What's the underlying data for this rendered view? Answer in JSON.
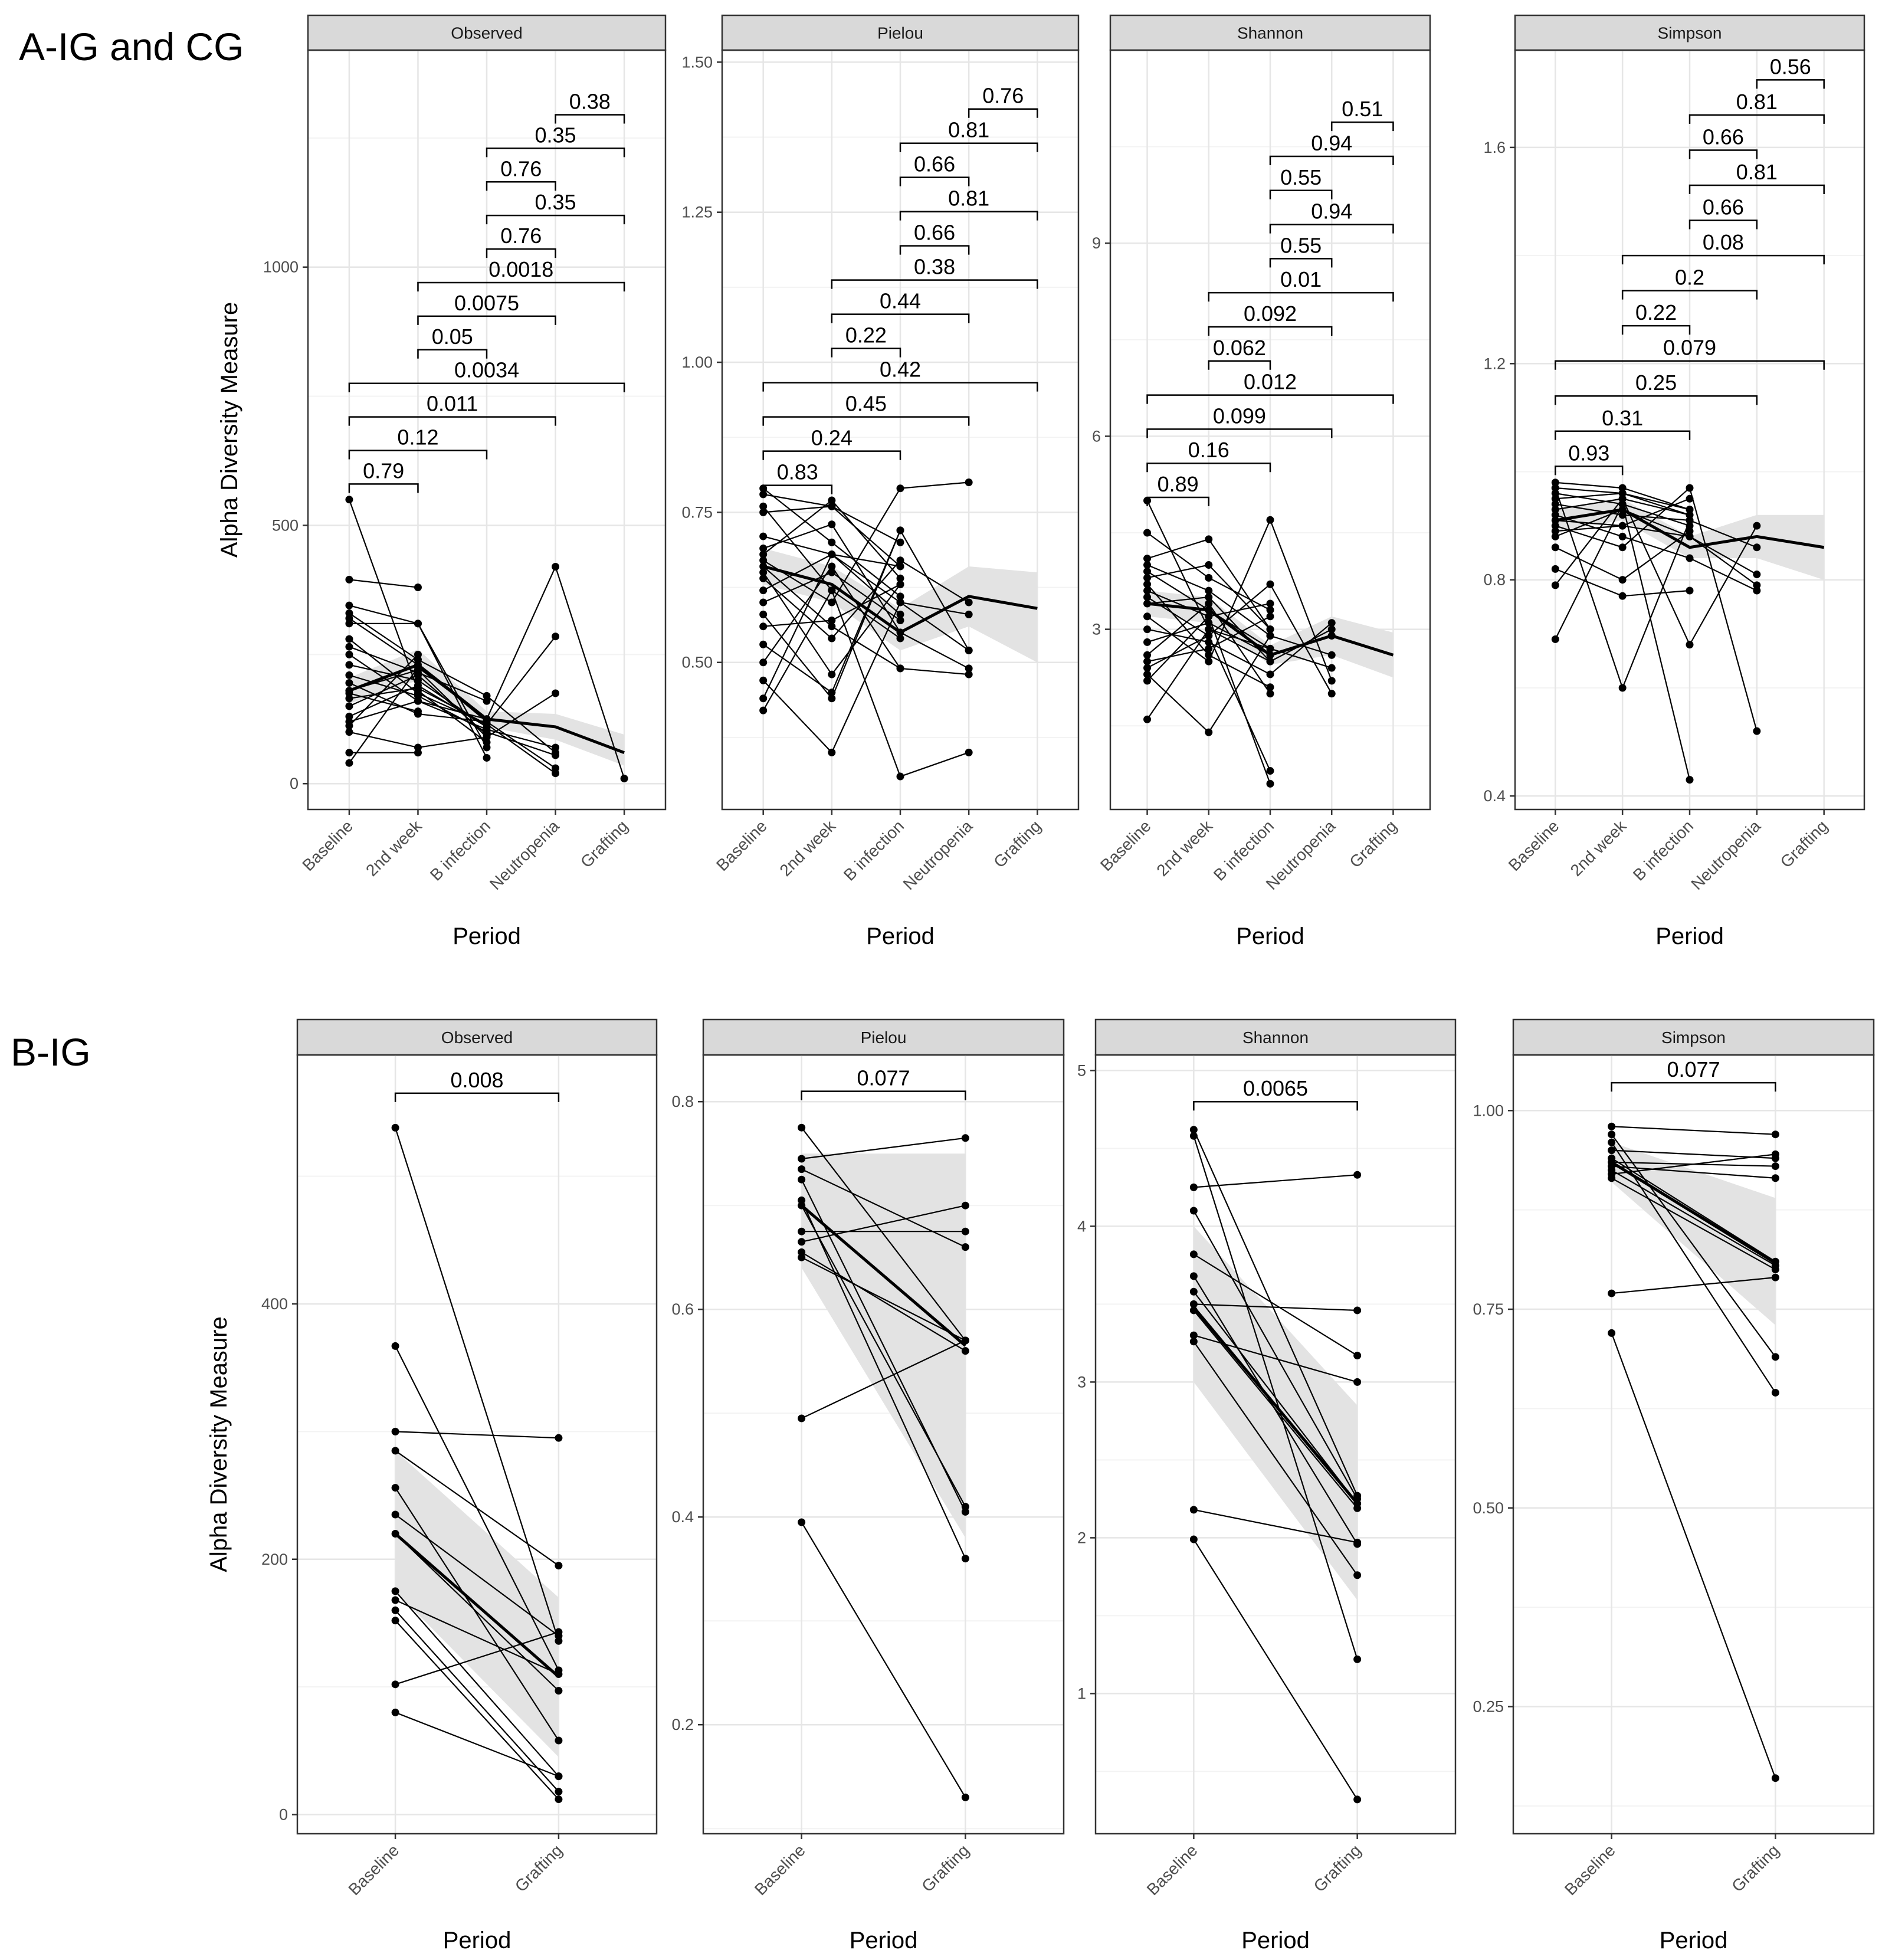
{
  "figure": {
    "panel_a_label": "A-IG and CG",
    "panel_b_label": "B-IG"
  },
  "colors": {
    "strip_fill": "#d9d9d9",
    "frame": "#333333",
    "grid_major": "#e6e6e6",
    "grid_minor": "#f3f3f3",
    "line": "#000000",
    "ribbon": "#e3e3e3",
    "text": "#000000",
    "tick_text": "#4d4d4d"
  },
  "chart_data": [
    {
      "type": "line",
      "group": "A-IG and CG",
      "facet": "Observed",
      "xlabel": "Period",
      "ylabel": "Alpha Diversity Measure",
      "categories": [
        "Baseline",
        "2nd week",
        "B infection",
        "Neutropenia",
        "Grafting"
      ],
      "ylim": [
        -50,
        1420
      ],
      "yticks": [
        0,
        500,
        1000
      ],
      "comparisons": [
        {
          "from": 0,
          "to": 1,
          "p": "0.79",
          "y": 580
        },
        {
          "from": 0,
          "to": 2,
          "p": "0.12",
          "y": 645
        },
        {
          "from": 0,
          "to": 3,
          "p": "0.011",
          "y": 710
        },
        {
          "from": 0,
          "to": 4,
          "p": "0.0034",
          "y": 775
        },
        {
          "from": 1,
          "to": 2,
          "p": "0.05",
          "y": 840
        },
        {
          "from": 1,
          "to": 3,
          "p": "0.0075",
          "y": 905
        },
        {
          "from": 1,
          "to": 4,
          "p": "0.0018",
          "y": 970
        },
        {
          "from": 2,
          "to": 3,
          "p": "0.76",
          "y": 1035
        },
        {
          "from": 2,
          "to": 4,
          "p": "0.35",
          "y": 1100
        },
        {
          "from": 2,
          "to": 3,
          "p": "0.76",
          "y": 1165
        },
        {
          "from": 2,
          "to": 4,
          "p": "0.35",
          "y": 1230
        },
        {
          "from": 3,
          "to": 4,
          "p": "0.38",
          "y": 1295
        }
      ],
      "series": [
        [
          550,
          180,
          80
        ],
        [
          395,
          380
        ],
        [
          345,
          310,
          70
        ],
        [
          330,
          240,
          170,
          60
        ],
        [
          320,
          230,
          120,
          30
        ],
        [
          310,
          310,
          50
        ],
        [
          280,
          175,
          115,
          285
        ],
        [
          265,
          215,
          160
        ],
        [
          250,
          160,
          125,
          420,
          10
        ],
        [
          230,
          200,
          110
        ],
        [
          210,
          170,
          100,
          55
        ],
        [
          195,
          135,
          120
        ],
        [
          180,
          220,
          90,
          175
        ],
        [
          165,
          185,
          115,
          20
        ],
        [
          150,
          210,
          95
        ],
        [
          130,
          190,
          110
        ],
        [
          120,
          160,
          105,
          70
        ],
        [
          112,
          250
        ],
        [
          100,
          70,
          90
        ],
        [
          40,
          225,
          125
        ],
        [
          175,
          140
        ],
        [
          60,
          60
        ]
      ],
      "mean": [
        180,
        230,
        125,
        110,
        60
      ],
      "band_lower": [
        155,
        200,
        110,
        85,
        35
      ],
      "band_upper": [
        205,
        260,
        140,
        135,
        95
      ]
    },
    {
      "type": "line",
      "group": "A-IG and CG",
      "facet": "Pielou",
      "xlabel": "Period",
      "ylabel": "",
      "categories": [
        "Baseline",
        "2nd week",
        "B infection",
        "Neutropenia",
        "Grafting"
      ],
      "ylim": [
        0.255,
        1.52
      ],
      "yticks": [
        0.5,
        0.75,
        1.0,
        1.25,
        1.5
      ],
      "ytick_labels": [
        "0.50",
        "0.75",
        "1.00",
        "1.25",
        "1.50"
      ],
      "comparisons": [
        {
          "from": 0,
          "to": 1,
          "p": "0.83",
          "y": 0.795
        },
        {
          "from": 0,
          "to": 2,
          "p": "0.24",
          "y": 0.852
        },
        {
          "from": 0,
          "to": 3,
          "p": "0.45",
          "y": 0.909
        },
        {
          "from": 0,
          "to": 4,
          "p": "0.42",
          "y": 0.966
        },
        {
          "from": 1,
          "to": 2,
          "p": "0.22",
          "y": 1.023
        },
        {
          "from": 1,
          "to": 3,
          "p": "0.44",
          "y": 1.08
        },
        {
          "from": 1,
          "to": 4,
          "p": "0.38",
          "y": 1.137
        },
        {
          "from": 2,
          "to": 3,
          "p": "0.66",
          "y": 1.194
        },
        {
          "from": 2,
          "to": 4,
          "p": "0.81",
          "y": 1.251
        },
        {
          "from": 2,
          "to": 3,
          "p": "0.66",
          "y": 1.308
        },
        {
          "from": 2,
          "to": 4,
          "p": "0.81",
          "y": 1.365
        },
        {
          "from": 3,
          "to": 4,
          "p": "0.76",
          "y": 1.422
        }
      ],
      "series": [
        [
          0.79,
          0.7,
          0.61
        ],
        [
          0.78,
          0.76,
          0.66
        ],
        [
          0.76,
          0.62,
          0.54
        ],
        [
          0.75,
          0.76,
          0.7
        ],
        [
          0.71,
          0.68,
          0.58
        ],
        [
          0.69,
          0.73,
          0.55,
          0.49
        ],
        [
          0.67,
          0.6,
          0.79,
          0.8
        ],
        [
          0.66,
          0.56,
          0.49,
          0.48
        ],
        [
          0.65,
          0.48,
          0.63
        ],
        [
          0.64,
          0.54,
          0.67,
          0.6
        ],
        [
          0.62,
          0.68,
          0.6,
          0.52
        ],
        [
          0.6,
          0.65,
          0.57
        ],
        [
          0.58,
          0.44,
          0.72
        ],
        [
          0.56,
          0.57,
          0.63
        ],
        [
          0.53,
          0.45,
          0.72,
          0.52
        ],
        [
          0.5,
          0.66,
          0.49
        ],
        [
          0.47,
          0.35,
          0.6,
          0.58
        ],
        [
          0.44,
          0.68,
          0.66
        ],
        [
          0.42,
          0.62,
          0.31,
          0.35
        ],
        [
          0.68,
          0.77,
          0.64
        ]
      ],
      "mean": [
        0.66,
        0.63,
        0.55,
        0.61,
        0.59
      ],
      "band_lower": [
        0.63,
        0.6,
        0.52,
        0.56,
        0.5
      ],
      "band_upper": [
        0.69,
        0.66,
        0.59,
        0.66,
        0.65
      ]
    },
    {
      "type": "line",
      "group": "A-IG and CG",
      "facet": "Shannon",
      "xlabel": "Period",
      "ylabel": "",
      "categories": [
        "Baseline",
        "2nd week",
        "B infection",
        "Neutropenia",
        "Grafting"
      ],
      "ylim": [
        0.2,
        12
      ],
      "yticks": [
        3,
        6,
        9
      ],
      "comparisons": [
        {
          "from": 0,
          "to": 1,
          "p": "0.89",
          "y": 5.05
        },
        {
          "from": 0,
          "to": 2,
          "p": "0.16",
          "y": 5.58
        },
        {
          "from": 0,
          "to": 3,
          "p": "0.099",
          "y": 6.11
        },
        {
          "from": 0,
          "to": 4,
          "p": "0.012",
          "y": 6.64
        },
        {
          "from": 1,
          "to": 2,
          "p": "0.062",
          "y": 7.17
        },
        {
          "from": 1,
          "to": 3,
          "p": "0.092",
          "y": 7.7
        },
        {
          "from": 1,
          "to": 4,
          "p": "0.01",
          "y": 8.23
        },
        {
          "from": 2,
          "to": 3,
          "p": "0.55",
          "y": 8.76
        },
        {
          "from": 2,
          "to": 4,
          "p": "0.94",
          "y": 9.29
        },
        {
          "from": 2,
          "to": 3,
          "p": "0.55",
          "y": 9.82
        },
        {
          "from": 2,
          "to": 4,
          "p": "0.94",
          "y": 10.35
        },
        {
          "from": 3,
          "to": 4,
          "p": "0.51",
          "y": 10.88
        }
      ],
      "series": [
        [
          5.0,
          3.0,
          2.5
        ],
        [
          4.5,
          3.8,
          3.3
        ],
        [
          4.1,
          4.4,
          3.0
        ],
        [
          4.0,
          3.6,
          2.9,
          2.6
        ],
        [
          3.9,
          3.3,
          2.7,
          2.4
        ],
        [
          3.8,
          4.0,
          3.0
        ],
        [
          3.6,
          3.2,
          3.4
        ],
        [
          3.5,
          2.9,
          3.7,
          2.0
        ],
        [
          3.4,
          3.5,
          2.5,
          3.0
        ],
        [
          3.2,
          2.5,
          4.7,
          2.2
        ],
        [
          3.0,
          2.8,
          2.3,
          3.1
        ],
        [
          2.8,
          3.1,
          2.6,
          2.9
        ],
        [
          2.6,
          3.4,
          2.0
        ],
        [
          2.5,
          2.7,
          3.2
        ],
        [
          2.3,
          1.4,
          2.9
        ],
        [
          2.2,
          3.2,
          0.6
        ],
        [
          1.6,
          3.0,
          2.7
        ],
        [
          3.7,
          2.6,
          2.1
        ],
        [
          2.4,
          2.9,
          0.8
        ]
      ],
      "mean": [
        3.4,
        3.3,
        2.6,
        2.9,
        2.6
      ],
      "band_lower": [
        3.2,
        3.1,
        2.45,
        2.6,
        2.25
      ],
      "band_upper": [
        3.6,
        3.5,
        2.75,
        3.2,
        2.95
      ]
    },
    {
      "type": "line",
      "group": "A-IG and CG",
      "facet": "Simpson",
      "xlabel": "Period",
      "ylabel": "",
      "categories": [
        "Baseline",
        "2nd week",
        "B infection",
        "Neutropenia",
        "Grafting"
      ],
      "ylim": [
        0.375,
        1.78
      ],
      "yticks": [
        0.4,
        0.8,
        1.2,
        1.6
      ],
      "comparisons": [
        {
          "from": 0,
          "to": 1,
          "p": "0.93",
          "y": 1.01
        },
        {
          "from": 0,
          "to": 2,
          "p": "0.31",
          "y": 1.075
        },
        {
          "from": 0,
          "to": 3,
          "p": "0.25",
          "y": 1.14
        },
        {
          "from": 0,
          "to": 4,
          "p": "0.079",
          "y": 1.205
        },
        {
          "from": 1,
          "to": 2,
          "p": "0.22",
          "y": 1.27
        },
        {
          "from": 1,
          "to": 3,
          "p": "0.2",
          "y": 1.335
        },
        {
          "from": 1,
          "to": 4,
          "p": "0.08",
          "y": 1.4
        },
        {
          "from": 2,
          "to": 3,
          "p": "0.66",
          "y": 1.465
        },
        {
          "from": 2,
          "to": 4,
          "p": "0.81",
          "y": 1.53
        },
        {
          "from": 2,
          "to": 3,
          "p": "0.66",
          "y": 1.595
        },
        {
          "from": 2,
          "to": 4,
          "p": "0.81",
          "y": 1.66
        },
        {
          "from": 3,
          "to": 4,
          "p": "0.56",
          "y": 1.725
        }
      ],
      "series": [
        [
          0.98,
          0.97,
          0.93
        ],
        [
          0.97,
          0.96,
          0.92
        ],
        [
          0.96,
          0.94,
          0.9
        ],
        [
          0.95,
          0.96,
          0.93
        ],
        [
          0.94,
          0.92,
          0.91,
          0.86
        ],
        [
          0.93,
          0.95,
          0.92
        ],
        [
          0.92,
          0.88,
          0.84,
          0.78
        ],
        [
          0.91,
          0.9,
          0.95
        ],
        [
          0.9,
          0.86,
          0.97,
          0.52
        ],
        [
          0.88,
          0.93,
          0.88,
          0.81
        ],
        [
          0.86,
          0.8,
          0.89
        ],
        [
          0.82,
          0.77,
          0.78
        ],
        [
          0.79,
          0.95,
          0.68,
          0.9
        ],
        [
          0.69,
          0.94,
          0.43
        ],
        [
          0.97,
          0.6,
          0.91
        ],
        [
          0.89,
          0.9,
          0.88,
          0.79
        ]
      ],
      "mean": [
        0.91,
        0.93,
        0.86,
        0.88,
        0.86
      ],
      "band_lower": [
        0.89,
        0.91,
        0.84,
        0.84,
        0.8
      ],
      "band_upper": [
        0.93,
        0.95,
        0.88,
        0.92,
        0.92
      ]
    },
    {
      "type": "line",
      "group": "B-IG",
      "facet": "Observed",
      "xlabel": "Period",
      "ylabel": "Alpha Diversity Measure",
      "categories": [
        "Baseline",
        "Grafting"
      ],
      "ylim": [
        -15,
        595
      ],
      "yticks": [
        0,
        200,
        400
      ],
      "comparisons": [
        {
          "from": 0,
          "to": 1,
          "p": "0.008",
          "y": 565
        }
      ],
      "series": [
        [
          538,
          136
        ],
        [
          367,
          113
        ],
        [
          300,
          295
        ],
        [
          285,
          195
        ],
        [
          256,
          58
        ],
        [
          235,
          140
        ],
        [
          220,
          97
        ],
        [
          175,
          30
        ],
        [
          168,
          110
        ],
        [
          160,
          18
        ],
        [
          152,
          12
        ],
        [
          102,
          143
        ],
        [
          80,
          30
        ]
      ],
      "mean": [
        220,
        108
      ],
      "band_lower": [
        175,
        45
      ],
      "band_upper": [
        285,
        170
      ]
    },
    {
      "type": "line",
      "group": "B-IG",
      "facet": "Pielou",
      "xlabel": "Period",
      "ylabel": "",
      "categories": [
        "Baseline",
        "Grafting"
      ],
      "ylim": [
        0.095,
        0.845
      ],
      "yticks": [
        0.2,
        0.4,
        0.6,
        0.8
      ],
      "ytick_labels": [
        "0.2",
        "0.4",
        "0.6",
        "0.8"
      ],
      "comparisons": [
        {
          "from": 0,
          "to": 1,
          "p": "0.077",
          "y": 0.81
        }
      ],
      "series": [
        [
          0.775,
          0.57
        ],
        [
          0.745,
          0.765
        ],
        [
          0.735,
          0.66
        ],
        [
          0.725,
          0.405
        ],
        [
          0.705,
          0.36
        ],
        [
          0.7,
          0.41
        ],
        [
          0.675,
          0.675
        ],
        [
          0.665,
          0.7
        ],
        [
          0.655,
          0.56
        ],
        [
          0.65,
          0.57
        ],
        [
          0.495,
          0.57
        ],
        [
          0.395,
          0.13
        ]
      ],
      "mean": [
        0.7,
        0.565
      ],
      "band_lower": [
        0.64,
        0.38
      ],
      "band_upper": [
        0.75,
        0.75
      ]
    },
    {
      "type": "line",
      "group": "B-IG",
      "facet": "Shannon",
      "xlabel": "Period",
      "ylabel": "",
      "categories": [
        "Baseline",
        "Grafting"
      ],
      "ylim": [
        0.1,
        5.1
      ],
      "yticks": [
        1,
        2,
        3,
        4,
        5
      ],
      "comparisons": [
        {
          "from": 0,
          "to": 1,
          "p": "0.0065",
          "y": 4.8
        }
      ],
      "series": [
        [
          4.62,
          2.27
        ],
        [
          4.58,
          1.22
        ],
        [
          4.25,
          4.33
        ],
        [
          4.1,
          2.25
        ],
        [
          3.82,
          3.17
        ],
        [
          3.68,
          1.96
        ],
        [
          3.58,
          2.22
        ],
        [
          3.5,
          3.46
        ],
        [
          3.46,
          2.19
        ],
        [
          3.3,
          3.0
        ],
        [
          3.26,
          1.76
        ],
        [
          2.18,
          1.97
        ],
        [
          1.99,
          0.32
        ]
      ],
      "mean": [
        3.48,
        2.22
      ],
      "band_lower": [
        3.0,
        1.6
      ],
      "band_upper": [
        4.0,
        2.85
      ]
    },
    {
      "type": "line",
      "group": "B-IG",
      "facet": "Simpson",
      "xlabel": "Period",
      "ylabel": "",
      "categories": [
        "Baseline",
        "Grafting"
      ],
      "ylim": [
        0.09,
        1.07
      ],
      "yticks": [
        0.25,
        0.5,
        0.75,
        1.0
      ],
      "ytick_labels": [
        "0.25",
        "0.50",
        "0.75",
        "1.00"
      ],
      "comparisons": [
        {
          "from": 0,
          "to": 1,
          "p": "0.077",
          "y": 1.035
        }
      ],
      "series": [
        [
          0.98,
          0.97
        ],
        [
          0.97,
          0.69
        ],
        [
          0.96,
          0.645
        ],
        [
          0.95,
          0.94
        ],
        [
          0.94,
          0.81
        ],
        [
          0.935,
          0.93
        ],
        [
          0.93,
          0.915
        ],
        [
          0.925,
          0.805
        ],
        [
          0.92,
          0.945
        ],
        [
          0.915,
          0.8
        ],
        [
          0.77,
          0.79
        ],
        [
          0.72,
          0.16
        ]
      ],
      "mean": [
        0.935,
        0.808
      ],
      "band_lower": [
        0.91,
        0.73
      ],
      "band_upper": [
        0.96,
        0.89
      ]
    }
  ]
}
